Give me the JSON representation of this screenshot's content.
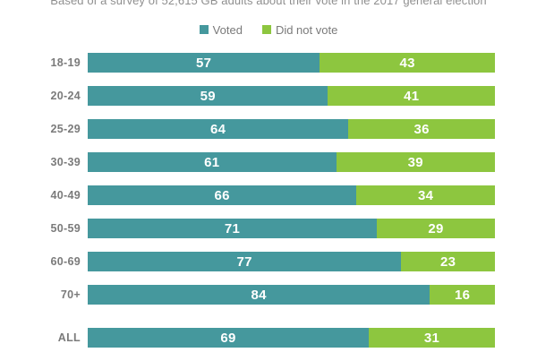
{
  "subtitle": "Based of a survey of 52,615 GB adults about their vote in the 2017 general election",
  "legend": {
    "voted_label": "Voted",
    "did_not_vote_label": "Did not vote"
  },
  "colors": {
    "voted": "#45989D",
    "did_not_vote": "#8DC63F",
    "value_text": "#ffffff",
    "label_text": "#7b7b7b",
    "subtitle_text": "#8f8f8f"
  },
  "chart_data": {
    "type": "bar",
    "orientation": "horizontal",
    "stacked": true,
    "title": "",
    "subtitle": "Based of a survey of 52,615 GB adults about their vote in the 2017 general election",
    "xlabel": "",
    "ylabel": "",
    "xlim": [
      0,
      100
    ],
    "grid": false,
    "legend_position": "top",
    "value_labels": true,
    "categories": [
      "18-19",
      "20-24",
      "25-29",
      "30-39",
      "40-49",
      "50-59",
      "60-69",
      "70+",
      "ALL"
    ],
    "series": [
      {
        "name": "Voted",
        "color": "#45989D",
        "values": [
          57,
          59,
          64,
          61,
          66,
          71,
          77,
          84,
          69
        ]
      },
      {
        "name": "Did not vote",
        "color": "#8DC63F",
        "values": [
          43,
          41,
          36,
          39,
          34,
          29,
          23,
          16,
          31
        ]
      }
    ]
  }
}
